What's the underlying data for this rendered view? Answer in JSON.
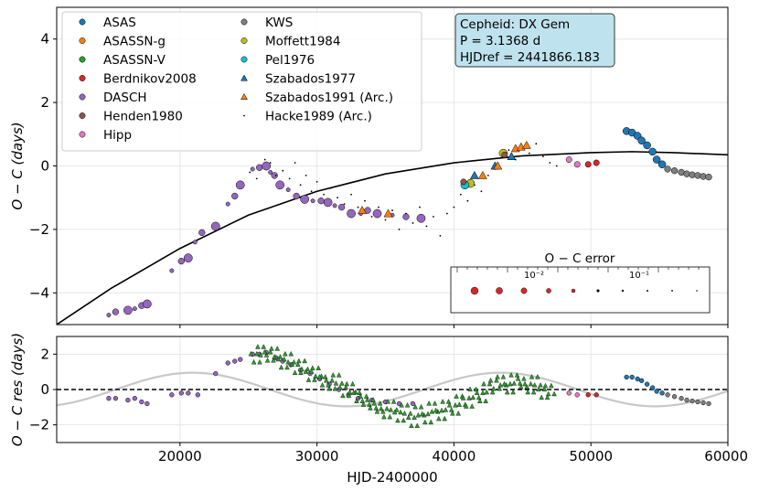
{
  "chart_data": [
    {
      "type": "scatter",
      "panel": "top",
      "ylabel": "O − C (days)",
      "xlim": [
        11000,
        60000
      ],
      "ylim": [
        -5,
        5
      ],
      "yticks": [
        -4,
        -2,
        0,
        2,
        4
      ],
      "grid": true,
      "legend_position": "top-left",
      "info_box": {
        "line1": "Cepheid: DX Gem",
        "line2": "P = 3.1368 d",
        "line3": "HJDref = 2441866.183"
      },
      "error_scale": {
        "title": "O − C error",
        "ticks": [
          "10⁻²",
          "10⁻¹"
        ]
      },
      "legend": [
        {
          "name": "ASAS",
          "color": "#1f77b4",
          "marker": "circle"
        },
        {
          "name": "ASASSN-g",
          "color": "#ff7f0e",
          "marker": "circle"
        },
        {
          "name": "ASASSN-V",
          "color": "#2ca02c",
          "marker": "circle"
        },
        {
          "name": "Berdnikov2008",
          "color": "#d62728",
          "marker": "circle"
        },
        {
          "name": "DASCH",
          "color": "#9467bd",
          "marker": "circle"
        },
        {
          "name": "Henden1980",
          "color": "#8c564b",
          "marker": "circle"
        },
        {
          "name": "Hipp",
          "color": "#e377c2",
          "marker": "circle"
        },
        {
          "name": "KWS",
          "color": "#7f7f7f",
          "marker": "circle"
        },
        {
          "name": "Moffett1984",
          "color": "#bcbd22",
          "marker": "circle"
        },
        {
          "name": "Pel1976",
          "color": "#17becf",
          "marker": "circle"
        },
        {
          "name": "Szabados1977",
          "color": "#1f77b4",
          "marker": "triangle"
        },
        {
          "name": "Szabados1991 (Arc.)",
          "color": "#ff7f0e",
          "marker": "triangle"
        },
        {
          "name": "Hacke1989 (Arc.)",
          "color": "#000000",
          "marker": "dot"
        }
      ],
      "fit": [
        [
          11000,
          -5.0
        ],
        [
          15000,
          -3.85
        ],
        [
          20000,
          -2.6
        ],
        [
          25000,
          -1.55
        ],
        [
          30000,
          -0.8
        ],
        [
          35000,
          -0.25
        ],
        [
          40000,
          0.1
        ],
        [
          45000,
          0.32
        ],
        [
          50000,
          0.42
        ],
        [
          53000,
          0.45
        ],
        [
          56000,
          0.42
        ],
        [
          60000,
          0.35
        ]
      ],
      "series": [
        {
          "name": "DASCH",
          "points": [
            [
              14800,
              -4.7
            ],
            [
              15300,
              -4.6
            ],
            [
              16200,
              -4.55
            ],
            [
              16700,
              -4.5
            ],
            [
              17200,
              -4.4
            ],
            [
              17600,
              -4.35
            ],
            [
              19400,
              -3.3
            ],
            [
              20100,
              -3.0
            ],
            [
              20600,
              -2.9
            ],
            [
              21100,
              -2.4
            ],
            [
              21600,
              -2.1
            ],
            [
              22600,
              -1.9
            ],
            [
              23500,
              -1.2
            ],
            [
              24000,
              -0.95
            ],
            [
              24400,
              -0.6
            ],
            [
              25300,
              -0.1
            ],
            [
              25800,
              -0.05
            ],
            [
              26300,
              0.0
            ],
            [
              26600,
              -0.2
            ],
            [
              26900,
              -0.3
            ],
            [
              27300,
              -0.6
            ],
            [
              27900,
              -0.75
            ],
            [
              28500,
              -0.95
            ],
            [
              29100,
              -1.05
            ],
            [
              29700,
              -1.1
            ],
            [
              30300,
              -1.1
            ],
            [
              30800,
              -1.15
            ],
            [
              31300,
              -1.25
            ],
            [
              31800,
              -1.3
            ],
            [
              32500,
              -1.5
            ],
            [
              33200,
              -1.5
            ],
            [
              33700,
              -1.4
            ],
            [
              34400,
              -1.5
            ],
            [
              35500,
              -1.55
            ],
            [
              36500,
              -1.6
            ],
            [
              37600,
              -1.65
            ]
          ]
        },
        {
          "name": "Hacke1989 (Arc.)",
          "points": [
            [
              25100,
              -0.2
            ],
            [
              25600,
              -0.4
            ],
            [
              26200,
              0.2
            ],
            [
              26600,
              0.1
            ],
            [
              27000,
              -0.3
            ],
            [
              27500,
              -0.15
            ],
            [
              28000,
              -0.4
            ],
            [
              28400,
              0.1
            ],
            [
              28800,
              -0.6
            ],
            [
              29200,
              -0.3
            ],
            [
              29600,
              -0.8
            ],
            [
              30000,
              -0.5
            ],
            [
              30500,
              -0.9
            ],
            [
              31000,
              -0.7
            ],
            [
              31500,
              -1.0
            ],
            [
              32000,
              -1.2
            ],
            [
              32500,
              -0.9
            ],
            [
              33000,
              -1.3
            ],
            [
              33500,
              -1.1
            ],
            [
              34000,
              -1.6
            ],
            [
              34500,
              -1.3
            ],
            [
              35000,
              -1.7
            ],
            [
              35500,
              -1.4
            ],
            [
              36000,
              -2.0
            ],
            [
              36500,
              -1.5
            ],
            [
              37000,
              -1.8
            ],
            [
              37500,
              -1.3
            ],
            [
              38000,
              -1.9
            ],
            [
              38500,
              -1.6
            ],
            [
              39000,
              -2.2
            ],
            [
              39500,
              -1.5
            ],
            [
              40000,
              -1.3
            ],
            [
              40500,
              -0.9
            ],
            [
              41000,
              -1.1
            ],
            [
              41500,
              -0.6
            ],
            [
              42000,
              -0.8
            ],
            [
              42500,
              -0.3
            ],
            [
              43000,
              -0.1
            ],
            [
              43500,
              0.3
            ],
            [
              44000,
              0.5
            ],
            [
              44500,
              0.2
            ],
            [
              45000,
              0.6
            ],
            [
              45500,
              0.4
            ],
            [
              46000,
              0.7
            ],
            [
              46500,
              0.3
            ],
            [
              47000,
              0.1
            ],
            [
              47500,
              0.0
            ]
          ]
        },
        {
          "name": "Szabados1977",
          "points": [
            [
              41500,
              -0.3
            ],
            [
              43000,
              0.0
            ],
            [
              44200,
              0.3
            ]
          ]
        },
        {
          "name": "Szabados1991 (Arc.)",
          "points": [
            [
              33300,
              -1.4
            ],
            [
              35200,
              -1.5
            ],
            [
              42100,
              -0.3
            ],
            [
              43200,
              0.0
            ],
            [
              44500,
              0.55
            ],
            [
              44900,
              0.6
            ],
            [
              45300,
              0.65
            ]
          ]
        },
        {
          "name": "Moffett1984",
          "points": [
            [
              41200,
              -0.55
            ],
            [
              43600,
              0.4
            ]
          ]
        },
        {
          "name": "Pel1976",
          "points": [
            [
              40800,
              -0.6
            ]
          ]
        },
        {
          "name": "Henden1980",
          "points": [
            [
              40700,
              -0.5
            ],
            [
              43700,
              0.35
            ]
          ]
        },
        {
          "name": "Hipp",
          "points": [
            [
              48400,
              0.2
            ],
            [
              49000,
              0.05
            ]
          ]
        },
        {
          "name": "Berdnikov2008",
          "points": [
            [
              49800,
              0.05
            ],
            [
              50400,
              0.1
            ]
          ]
        },
        {
          "name": "ASAS",
          "points": [
            [
              52600,
              1.1
            ],
            [
              53000,
              1.05
            ],
            [
              53400,
              0.95
            ],
            [
              53700,
              0.8
            ],
            [
              54100,
              0.65
            ],
            [
              54500,
              0.45
            ],
            [
              54800,
              0.2
            ],
            [
              55200,
              0.05
            ]
          ]
        },
        {
          "name": "KWS",
          "points": [
            [
              55600,
              -0.1
            ],
            [
              56100,
              -0.15
            ],
            [
              56600,
              -0.2
            ],
            [
              57000,
              -0.25
            ],
            [
              57400,
              -0.28
            ],
            [
              57800,
              -0.3
            ],
            [
              58200,
              -0.33
            ],
            [
              58600,
              -0.35
            ]
          ]
        }
      ]
    },
    {
      "type": "scatter",
      "panel": "bottom",
      "xlabel": "HJD-2400000",
      "ylabel": "O − C res (days)",
      "xlim": [
        11000,
        60000
      ],
      "ylim": [
        -3,
        3
      ],
      "yticks": [
        -2,
        0,
        2
      ],
      "xticks": [
        20000,
        30000,
        40000,
        50000,
        60000
      ],
      "xtick_labels": [
        "20000",
        "30000",
        "40000",
        "50000",
        "60000"
      ],
      "zero_line": true,
      "sine_model": {
        "amplitude": 0.95,
        "period_days": 22500,
        "phase_x": 15300
      },
      "series": [
        {
          "name": "DASCH",
          "points": [
            [
              14800,
              -0.5
            ],
            [
              15300,
              -0.5
            ],
            [
              16200,
              -0.6
            ],
            [
              16700,
              -0.5
            ],
            [
              17200,
              -0.7
            ],
            [
              17600,
              -0.8
            ],
            [
              19400,
              -0.3
            ],
            [
              20100,
              -0.2
            ],
            [
              20600,
              -0.2
            ],
            [
              21300,
              -0.3
            ],
            [
              22600,
              0.9
            ],
            [
              23500,
              1.5
            ],
            [
              24000,
              1.6
            ],
            [
              24400,
              1.7
            ],
            [
              25300,
              2.0
            ],
            [
              25800,
              2.0
            ],
            [
              26300,
              2.1
            ],
            [
              27000,
              1.8
            ],
            [
              27500,
              1.6
            ],
            [
              28100,
              1.4
            ],
            [
              28800,
              1.1
            ],
            [
              29500,
              0.9
            ],
            [
              30200,
              0.6
            ],
            [
              30900,
              0.3
            ],
            [
              31600,
              0.0
            ],
            [
              32300,
              -0.3
            ],
            [
              33000,
              -0.5
            ],
            [
              34000,
              -0.6
            ],
            [
              35000,
              -0.7
            ],
            [
              36000,
              -0.8
            ],
            [
              37000,
              -0.8
            ]
          ]
        },
        {
          "name": "ASASSN-V",
          "points": [
            [
              25500,
              1.8
            ],
            [
              26000,
              2.2
            ],
            [
              26500,
              1.9
            ],
            [
              27000,
              2.1
            ],
            [
              27500,
              1.5
            ],
            [
              28000,
              1.8
            ],
            [
              28500,
              1.2
            ],
            [
              29000,
              1.4
            ],
            [
              29500,
              0.8
            ],
            [
              30000,
              1.0
            ],
            [
              30500,
              0.5
            ],
            [
              31000,
              0.3
            ],
            [
              31500,
              0.6
            ],
            [
              32000,
              -0.1
            ],
            [
              32500,
              0.1
            ],
            [
              33000,
              -0.4
            ],
            [
              33500,
              -0.6
            ],
            [
              34000,
              -0.8
            ],
            [
              34500,
              -1.0
            ],
            [
              35000,
              -1.3
            ],
            [
              35500,
              -0.9
            ],
            [
              36000,
              -1.5
            ],
            [
              36500,
              -1.1
            ],
            [
              37000,
              -1.8
            ],
            [
              37500,
              -1.2
            ],
            [
              38000,
              -1.6
            ],
            [
              38500,
              -1.0
            ],
            [
              39000,
              -1.4
            ],
            [
              39500,
              -0.9
            ],
            [
              40000,
              -1.1
            ],
            [
              40500,
              -0.6
            ],
            [
              41000,
              -0.7
            ],
            [
              41500,
              -0.2
            ],
            [
              42000,
              -0.4
            ],
            [
              42500,
              0.1
            ],
            [
              43000,
              0.3
            ],
            [
              43500,
              0.5
            ],
            [
              44000,
              0.1
            ],
            [
              44500,
              0.6
            ],
            [
              45000,
              0.4
            ],
            [
              45500,
              0.1
            ],
            [
              46000,
              0.5
            ],
            [
              46500,
              -0.2
            ],
            [
              47000,
              0.0
            ]
          ]
        },
        {
          "name": "Hipp",
          "points": [
            [
              48400,
              -0.2
            ],
            [
              49000,
              -0.3
            ]
          ]
        },
        {
          "name": "Berdnikov2008",
          "points": [
            [
              49800,
              -0.3
            ],
            [
              50400,
              -0.3
            ]
          ]
        },
        {
          "name": "ASAS",
          "points": [
            [
              52600,
              0.7
            ],
            [
              53000,
              0.7
            ],
            [
              53400,
              0.6
            ],
            [
              53700,
              0.5
            ],
            [
              54100,
              0.3
            ],
            [
              54500,
              0.1
            ],
            [
              54800,
              -0.1
            ],
            [
              55200,
              -0.2
            ]
          ]
        },
        {
          "name": "KWS",
          "points": [
            [
              55600,
              -0.3
            ],
            [
              56100,
              -0.4
            ],
            [
              56600,
              -0.5
            ],
            [
              57000,
              -0.6
            ],
            [
              57400,
              -0.65
            ],
            [
              57800,
              -0.7
            ],
            [
              58200,
              -0.75
            ],
            [
              58600,
              -0.8
            ]
          ]
        }
      ]
    }
  ]
}
